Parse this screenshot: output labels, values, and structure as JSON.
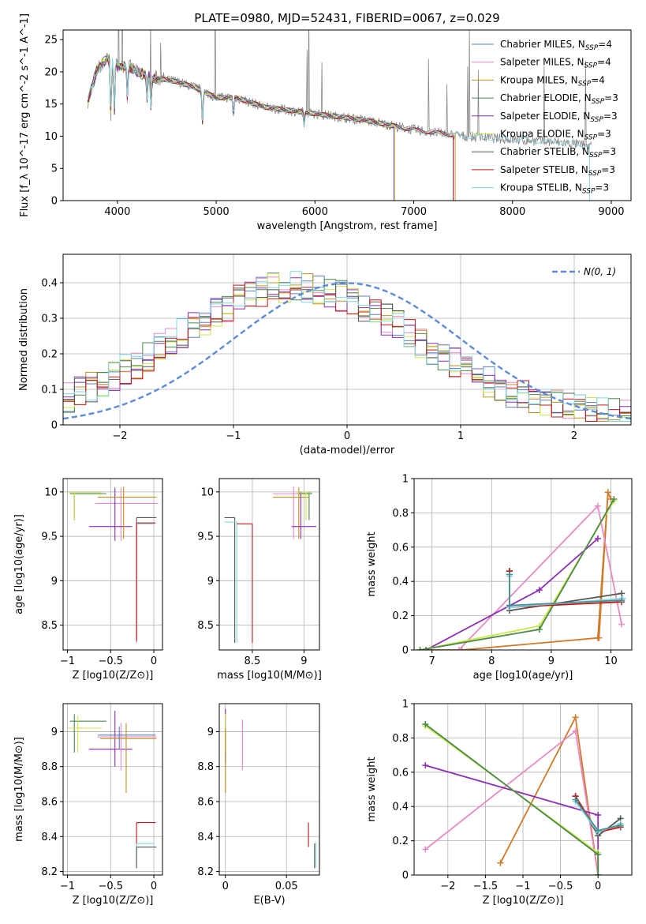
{
  "figure_title": "PLATE=0980, MJD=52431, FIBERID=0067, z=0.029",
  "colors": {
    "Chabrier MILES": "#5b7fc8",
    "Salpeter MILES": "#e88ac4",
    "Kroupa MILES": "#c09020",
    "Chabrier ELODIE": "#4a8a4a",
    "Salpeter ELODIE": "#8e2ab8",
    "Kroupa ELODIE": "#cde84a",
    "Chabrier STELIB": "#555555",
    "Salpeter STELIB": "#c01818",
    "Kroupa STELIB": "#7fd6e4",
    "observed": "#888888",
    "gaussian": "#5b8bd9",
    "mw_orange": "#d07a2a",
    "mw_pink": "#e88ac4",
    "mw_purple": "#8e2ab8",
    "mw_lime": "#cde84a",
    "mw_green": "#4a8a4a",
    "mw_gray": "#555555",
    "mw_red": "#c01818",
    "mw_cyan": "#7fd6e4",
    "mw_teal": "#4a8f8f"
  },
  "chart_data": [
    {
      "id": "spectrum",
      "type": "line",
      "xlabel": "wavelength [Angstrom, rest frame]",
      "ylabel": "Flux [f_λ 10^-17 erg cm^-2 s^-1 A^-1]",
      "xlim": [
        3450,
        9200
      ],
      "ylim": [
        0,
        26.5
      ],
      "xticks": [
        4000,
        5000,
        6000,
        7000,
        8000,
        9000
      ],
      "yticks": [
        0,
        5,
        10,
        15,
        20,
        25
      ],
      "legend_position": "top-right",
      "legend": [
        {
          "name": "Chabrier MILES",
          "nssp": "4"
        },
        {
          "name": "Salpeter MILES",
          "nssp": "4"
        },
        {
          "name": "Kroupa MILES",
          "nssp": "4"
        },
        {
          "name": "Chabrier ELODIE",
          "nssp": "3"
        },
        {
          "name": "Salpeter ELODIE",
          "nssp": "3"
        },
        {
          "name": "Kroupa ELODIE",
          "nssp": "3"
        },
        {
          "name": "Chabrier STELIB",
          "nssp": "3"
        },
        {
          "name": "Salpeter STELIB",
          "nssp": "3"
        },
        {
          "name": "Kroupa STELIB",
          "nssp": "3"
        }
      ],
      "continuum": [
        [
          3700,
          15.5
        ],
        [
          3800,
          20.5
        ],
        [
          3900,
          22
        ],
        [
          4000,
          21
        ],
        [
          4100,
          21
        ],
        [
          4200,
          20
        ],
        [
          4400,
          19
        ],
        [
          4600,
          18.5
        ],
        [
          4800,
          17.5
        ],
        [
          5000,
          16
        ],
        [
          5200,
          16
        ],
        [
          5500,
          14.5
        ],
        [
          6000,
          13.5
        ],
        [
          6500,
          12.5
        ],
        [
          7000,
          11
        ],
        [
          7500,
          10
        ],
        [
          8000,
          9.5
        ],
        [
          8500,
          9
        ],
        [
          8800,
          8.5
        ]
      ],
      "series_ranges": {
        "Chabrier MILES": [
          3700,
          7400
        ],
        "Salpeter MILES": [
          3700,
          7400
        ],
        "Kroupa MILES": [
          3700,
          7420
        ],
        "Chabrier ELODIE": [
          3700,
          6800
        ],
        "Salpeter ELODIE": [
          3700,
          6800
        ],
        "Kroupa ELODIE": [
          3700,
          6810
        ],
        "Chabrier STELIB": [
          3700,
          7400
        ],
        "Salpeter STELIB": [
          3700,
          7400
        ],
        "Kroupa STELIB": [
          3700,
          8780
        ]
      }
    },
    {
      "id": "residuals",
      "type": "histogram",
      "xlabel": "(data-model)/error",
      "ylabel": "Normed distribution",
      "xlim": [
        -2.5,
        2.5
      ],
      "ylim": [
        0,
        0.48
      ],
      "xticks": [
        -2,
        -1,
        0,
        1,
        2
      ],
      "yticks": [
        0.0,
        0.1,
        0.2,
        0.3,
        0.4
      ],
      "gaussian_label": "N(0, 1)",
      "legend_position": "top-right",
      "bin_width": 0.1,
      "bin_start": -2.5
    },
    {
      "id": "age_vs_Z",
      "type": "scatter",
      "xlabel": "Z [log10(Z/Z⊙)]",
      "ylabel": "age [log10(age/yr)]",
      "xlim": [
        -1.05,
        0.1
      ],
      "ylim": [
        8.22,
        10.15
      ],
      "xticks": [
        -1.0,
        -0.5,
        0.0
      ],
      "yticks": [
        8.5,
        9.0,
        9.5,
        10.0
      ],
      "points": [
        {
          "s": "Chabrier ELODIE",
          "x": -0.92,
          "y": 9.98,
          "xe": [
            -0.97,
            -0.55
          ],
          "ye": [
            9.68,
            10.0
          ]
        },
        {
          "s": "Kroupa ELODIE",
          "x": -0.92,
          "y": 9.99,
          "xe": [
            -0.99,
            -0.6
          ],
          "ye": [
            9.68,
            10.0
          ]
        },
        {
          "s": "Salpeter MILES",
          "x": -0.38,
          "y": 9.87,
          "xe": [
            -0.68,
            0.05
          ],
          "ye": [
            9.45,
            10.05
          ]
        },
        {
          "s": "Salpeter ELODIE",
          "x": -0.45,
          "y": 9.61,
          "xe": [
            -0.75,
            -0.25
          ],
          "ye": [
            9.45,
            10.05
          ]
        },
        {
          "s": "Kroupa MILES",
          "x": -0.35,
          "y": 9.94,
          "xe": [
            -0.65,
            0.03
          ],
          "ye": [
            9.47,
            10.06
          ]
        },
        {
          "s": "Chabrier STELIB",
          "x": -0.2,
          "y": 9.71,
          "xe": [
            -0.2,
            0.03
          ],
          "ye": [
            8.3,
            9.71
          ]
        },
        {
          "s": "Kroupa STELIB",
          "x": -0.2,
          "y": 9.64,
          "xe": [
            -0.2,
            0.0
          ],
          "ye": [
            8.3,
            9.64
          ]
        },
        {
          "s": "Salpeter STELIB",
          "x": -0.2,
          "y": 9.65,
          "xe": [
            -0.2,
            0.02
          ],
          "ye": [
            8.32,
            9.65
          ]
        }
      ]
    },
    {
      "id": "age_vs_mass",
      "type": "scatter",
      "xlabel": "mass [log10(M/M⊙)]",
      "ylabel": "",
      "xlim": [
        8.18,
        9.15
      ],
      "ylim": [
        8.22,
        10.15
      ],
      "xticks": [
        8.5,
        9.0
      ],
      "yticks": [
        8.5,
        9.0,
        9.5,
        10.0
      ],
      "points": [
        {
          "s": "Chabrier STELIB",
          "x": 8.33,
          "y": 9.71,
          "xe": [
            8.23,
            8.33
          ],
          "ye": [
            8.3,
            9.71
          ]
        },
        {
          "s": "Kroupa STELIB",
          "x": 8.35,
          "y": 9.66,
          "xe": [
            8.23,
            8.35
          ],
          "ye": [
            8.3,
            9.66
          ]
        },
        {
          "s": "Salpeter STELIB",
          "x": 8.5,
          "y": 9.64,
          "xe": [
            8.35,
            8.5
          ],
          "ye": [
            8.3,
            9.64
          ]
        },
        {
          "s": "Salpeter MILES",
          "x": 8.9,
          "y": 9.98,
          "xe": [
            8.7,
            9.05
          ],
          "ye": [
            9.47,
            10.06
          ]
        },
        {
          "s": "Kroupa MILES",
          "x": 8.95,
          "y": 9.94,
          "xe": [
            8.7,
            9.05
          ],
          "ye": [
            9.47,
            10.05
          ]
        },
        {
          "s": "Salpeter ELODIE",
          "x": 8.97,
          "y": 9.61,
          "xe": [
            8.88,
            9.12
          ],
          "ye": [
            9.47,
            10.0
          ]
        },
        {
          "s": "Chabrier ELODIE",
          "x": 9.05,
          "y": 9.98,
          "xe": [
            8.95,
            9.08
          ],
          "ye": [
            9.68,
            10.0
          ]
        },
        {
          "s": "Kroupa ELODIE",
          "x": 9.02,
          "y": 9.99,
          "xe": [
            8.93,
            9.08
          ],
          "ye": [
            9.68,
            10.0
          ]
        }
      ]
    },
    {
      "id": "mass_weight_vs_age",
      "type": "line",
      "xlabel": "age [log10(age/yr)]",
      "ylabel": "mass weight",
      "xlim": [
        6.7,
        10.35
      ],
      "ylim": [
        0,
        1.0
      ],
      "xticks": [
        7,
        8,
        9,
        10
      ],
      "yticks": [
        0.0,
        0.2,
        0.4,
        0.6,
        0.8,
        1.0
      ],
      "lines": [
        {
          "c": "mw_orange",
          "pts": [
            [
              6.8,
              0.0
            ],
            [
              7.5,
              0.0
            ],
            [
              9.78,
              0.07
            ],
            [
              9.95,
              0.92
            ],
            [
              10.0,
              0.88
            ]
          ]
        },
        {
          "c": "mw_orange",
          "pts": [
            [
              9.8,
              0.07
            ],
            [
              9.95,
              0.92
            ]
          ]
        },
        {
          "c": "mw_pink",
          "pts": [
            [
              7.45,
              0.0
            ],
            [
              9.78,
              0.84
            ],
            [
              10.18,
              0.15
            ]
          ]
        },
        {
          "c": "mw_purple",
          "pts": [
            [
              6.9,
              0.0
            ],
            [
              8.8,
              0.35
            ],
            [
              9.78,
              0.65
            ]
          ]
        },
        {
          "c": "mw_lime",
          "pts": [
            [
              6.8,
              0.0
            ],
            [
              8.8,
              0.14
            ],
            [
              10.05,
              0.87
            ]
          ]
        },
        {
          "c": "mw_green",
          "pts": [
            [
              6.8,
              0.0
            ],
            [
              8.8,
              0.12
            ],
            [
              10.05,
              0.88
            ]
          ]
        },
        {
          "c": "mw_gray",
          "pts": [
            [
              8.3,
              0.46
            ],
            [
              8.3,
              0.23
            ],
            [
              10.18,
              0.33
            ]
          ]
        },
        {
          "c": "mw_red",
          "pts": [
            [
              8.3,
              0.46
            ],
            [
              8.3,
              0.25
            ],
            [
              10.18,
              0.28
            ]
          ]
        },
        {
          "c": "mw_cyan",
          "pts": [
            [
              8.3,
              0.43
            ],
            [
              8.3,
              0.25
            ],
            [
              10.2,
              0.3
            ]
          ]
        },
        {
          "c": "mw_teal",
          "pts": [
            [
              8.3,
              0.44
            ],
            [
              8.3,
              0.26
            ],
            [
              10.18,
              0.29
            ]
          ]
        }
      ]
    },
    {
      "id": "mass_vs_Z",
      "type": "scatter",
      "xlabel": "Z [log10(Z/Z⊙)]",
      "ylabel": "mass [log10(M/M⊙)]",
      "xlim": [
        -1.05,
        0.1
      ],
      "ylim": [
        8.18,
        9.16
      ],
      "xticks": [
        -1.0,
        -0.5,
        0.0
      ],
      "yticks": [
        8.2,
        8.4,
        8.6,
        8.8,
        9.0
      ],
      "points": [
        {
          "s": "Chabrier ELODIE",
          "x": -0.92,
          "y": 9.06,
          "xe": [
            -0.97,
            -0.55
          ],
          "ye": [
            8.88,
            9.1
          ]
        },
        {
          "s": "Kroupa ELODIE",
          "x": -0.88,
          "y": 9.02,
          "xe": [
            -0.99,
            -0.6
          ],
          "ye": [
            8.88,
            9.09
          ]
        },
        {
          "s": "Salpeter ELODIE",
          "x": -0.45,
          "y": 8.9,
          "xe": [
            -0.75,
            -0.25
          ],
          "ye": [
            8.8,
            9.12
          ]
        },
        {
          "s": "Salpeter MILES",
          "x": -0.38,
          "y": 8.97,
          "xe": [
            -0.65,
            0.03
          ],
          "ye": [
            8.78,
            9.05
          ]
        },
        {
          "s": "Kroupa MILES",
          "x": -0.32,
          "y": 8.96,
          "xe": [
            -0.62,
            0.03
          ],
          "ye": [
            8.65,
            9.05
          ]
        },
        {
          "s": "Chabrier MILES",
          "x": -0.4,
          "y": 8.98,
          "xe": [
            -0.65,
            0.02
          ],
          "ye": [
            8.9,
            9.03
          ]
        },
        {
          "s": "Salpeter STELIB",
          "x": -0.2,
          "y": 8.48,
          "xe": [
            -0.2,
            0.02
          ],
          "ye": [
            8.34,
            8.48
          ]
        },
        {
          "s": "Kroupa STELIB",
          "x": -0.2,
          "y": 8.36,
          "xe": [
            -0.2,
            0.0
          ],
          "ye": [
            8.22,
            8.36
          ]
        },
        {
          "s": "Chabrier STELIB",
          "x": -0.2,
          "y": 8.34,
          "xe": [
            -0.2,
            0.03
          ],
          "ye": [
            8.22,
            8.34
          ]
        }
      ]
    },
    {
      "id": "mass_vs_EBV",
      "type": "scatter",
      "xlabel": "E(B-V)",
      "ylabel": "",
      "xlim": [
        -0.005,
        0.077
      ],
      "ylim": [
        8.18,
        9.16
      ],
      "xticks": [
        0.0,
        0.05
      ],
      "yticks": [
        8.2,
        8.4,
        8.6,
        8.8,
        9.0
      ],
      "points": [
        {
          "s": "Salpeter ELODIE",
          "x": 0.0,
          "y": 9.05,
          "xe": [
            0.0,
            0.0
          ],
          "ye": [
            8.82,
            9.13
          ]
        },
        {
          "s": "Kroupa ELODIE",
          "x": 0.0,
          "y": 8.98,
          "xe": [
            0.0,
            0.0
          ],
          "ye": [
            8.88,
            9.1
          ]
        },
        {
          "s": "Kroupa MILES",
          "x": 0.0,
          "y": 8.8,
          "xe": [
            0.0,
            0.0
          ],
          "ye": [
            8.65,
            9.02
          ]
        },
        {
          "s": "Salpeter MILES",
          "x": 0.014,
          "y": 8.9,
          "xe": [
            0.014,
            0.014
          ],
          "ye": [
            8.78,
            9.07
          ]
        },
        {
          "s": "Salpeter STELIB",
          "x": 0.068,
          "y": 8.42,
          "xe": [
            0.068,
            0.068
          ],
          "ye": [
            8.34,
            8.48
          ]
        },
        {
          "s": "Chabrier STELIB",
          "x": 0.073,
          "y": 8.3,
          "xe": [
            0.073,
            0.073
          ],
          "ye": [
            8.22,
            8.36
          ]
        },
        {
          "s": "Kroupa STELIB",
          "x": 0.074,
          "y": 8.29,
          "xe": [
            0.074,
            0.074
          ],
          "ye": [
            8.22,
            8.37
          ]
        }
      ]
    },
    {
      "id": "mass_weight_vs_Z",
      "type": "line",
      "xlabel": "Z [log10(Z/Z⊙)]",
      "ylabel": "mass weight",
      "xlim": [
        -2.45,
        0.45
      ],
      "ylim": [
        0,
        1.0
      ],
      "xticks": [
        -2.0,
        -1.5,
        -1.0,
        -0.5,
        0.0
      ],
      "yticks": [
        0.0,
        0.2,
        0.4,
        0.6,
        0.8,
        1.0
      ],
      "lines": [
        {
          "c": "mw_orange",
          "pts": [
            [
              -1.3,
              0.07
            ],
            [
              -0.3,
              0.92
            ],
            [
              0.0,
              0.0
            ]
          ]
        },
        {
          "c": "mw_pink",
          "pts": [
            [
              -2.3,
              0.15
            ],
            [
              -0.3,
              0.84
            ],
            [
              0.0,
              0.0
            ]
          ]
        },
        {
          "c": "mw_purple",
          "pts": [
            [
              -2.3,
              0.64
            ],
            [
              0.0,
              0.35
            ],
            [
              0.0,
              0.0
            ]
          ]
        },
        {
          "c": "mw_lime",
          "pts": [
            [
              -2.3,
              0.87
            ],
            [
              0.0,
              0.13
            ],
            [
              0.0,
              0.0
            ]
          ]
        },
        {
          "c": "mw_green",
          "pts": [
            [
              -2.3,
              0.88
            ],
            [
              0.0,
              0.12
            ],
            [
              0.0,
              0.0
            ]
          ]
        },
        {
          "c": "mw_gray",
          "pts": [
            [
              -0.3,
              0.46
            ],
            [
              0.0,
              0.23
            ],
            [
              0.3,
              0.33
            ]
          ]
        },
        {
          "c": "mw_red",
          "pts": [
            [
              -0.3,
              0.46
            ],
            [
              0.0,
              0.25
            ],
            [
              0.3,
              0.28
            ]
          ]
        },
        {
          "c": "mw_cyan",
          "pts": [
            [
              -0.3,
              0.43
            ],
            [
              0.0,
              0.25
            ],
            [
              0.3,
              0.3
            ]
          ]
        },
        {
          "c": "mw_teal",
          "pts": [
            [
              -0.3,
              0.44
            ],
            [
              0.0,
              0.26
            ],
            [
              0.3,
              0.29
            ]
          ]
        }
      ]
    }
  ]
}
